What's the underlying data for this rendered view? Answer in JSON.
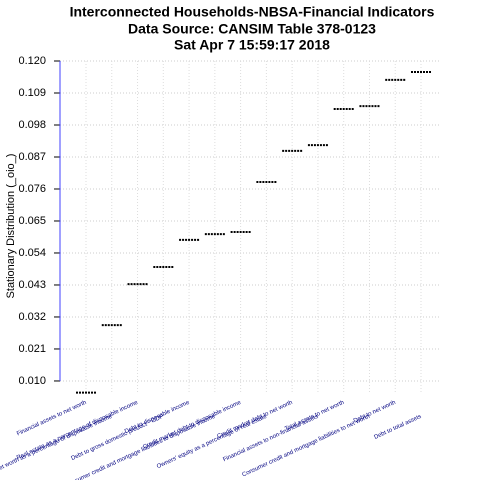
{
  "chart_data": {
    "type": "dash",
    "title": [
      "Interconnected Households-NBSA-Financial Indicators",
      "Data Source: CANSIM Table 378-0123",
      "Sat Apr  7 15:59:17 2018"
    ],
    "y_label": "Stationary Distribution (_oio_)",
    "categories": [
      "Financial assets to net worth",
      "Net worth as a percentage of disposable income",
      "Real estate as a percentage of disposable income",
      "Debt to gross domestic product - GDP",
      "Debt to disposable income",
      "Consumer credit and mortgage liabilities to disposable income",
      "Credit market debt to disposable income",
      "Owners' equity as a percentage of real estate",
      "Credit market debt to net worth",
      "Financial assets to non-financial assets",
      "Total assets to net worth",
      "Consumer credit and mortgage liabilities to net worth",
      "Debt to net worth",
      "Debt to total assets"
    ],
    "values": [
      0.006,
      0.0292,
      0.0433,
      0.0492,
      0.0585,
      0.0605,
      0.0612,
      0.0784,
      0.0891,
      0.0911,
      0.1035,
      0.1045,
      0.1135,
      0.1162
    ],
    "color": "#000000",
    "ylim": [
      0.006,
      0.12
    ],
    "yticks": [
      {
        "value": 0.01,
        "label": "0.010"
      },
      0.021,
      0.032,
      0.043,
      0.054,
      0.065,
      0.076,
      0.087,
      0.098,
      0.109,
      {
        "value": 0.12,
        "label": "0.120"
      }
    ],
    "grid": true
  }
}
